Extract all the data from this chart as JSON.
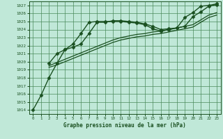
{
  "title": "Graphe pression niveau de la mer (hPa)",
  "bg_color": "#c0e8d8",
  "grid_color": "#4a8a5a",
  "line_color": "#1a5020",
  "xlim": [
    -0.5,
    23.5
  ],
  "ylim": [
    1013.5,
    1027.5
  ],
  "xticks": [
    0,
    1,
    2,
    3,
    4,
    5,
    6,
    7,
    8,
    9,
    10,
    11,
    12,
    13,
    14,
    15,
    16,
    17,
    18,
    19,
    20,
    21,
    22,
    23
  ],
  "yticks": [
    1014,
    1015,
    1016,
    1017,
    1018,
    1019,
    1020,
    1021,
    1022,
    1023,
    1024,
    1025,
    1026,
    1027
  ],
  "series": [
    {
      "x": [
        0,
        1,
        2,
        3,
        4,
        5,
        6,
        7,
        8,
        9,
        10,
        11,
        12,
        13,
        14,
        15,
        16,
        17,
        18,
        19,
        20,
        21,
        22,
        23
      ],
      "y": [
        1014.0,
        1015.8,
        1018.0,
        1019.8,
        1021.5,
        1021.8,
        1022.2,
        1023.5,
        1024.9,
        1024.9,
        1025.1,
        1025.1,
        1025.0,
        1024.9,
        1024.7,
        1024.4,
        1024.0,
        1024.1,
        1024.2,
        1025.5,
        1026.1,
        1026.9,
        1027.0,
        1027.2
      ],
      "marker": "D",
      "markersize": 2.5,
      "linewidth": 1.0
    },
    {
      "x": [
        2,
        3,
        4,
        5,
        6,
        7,
        8,
        9,
        10,
        11,
        12,
        13,
        14,
        15,
        16,
        17,
        18,
        19,
        20,
        21,
        22,
        23
      ],
      "y": [
        1019.8,
        1021.0,
        1021.5,
        1022.2,
        1023.5,
        1024.9,
        1025.0,
        1025.0,
        1025.0,
        1025.0,
        1024.9,
        1024.8,
        1024.6,
        1024.1,
        1023.8,
        1024.0,
        1024.2,
        1024.4,
        1025.6,
        1026.2,
        1026.9,
        1027.1
      ],
      "marker": "D",
      "markersize": 2.5,
      "linewidth": 1.0
    },
    {
      "x": [
        2,
        3,
        4,
        5,
        6,
        7,
        8,
        9,
        10,
        11,
        12,
        13,
        14,
        15,
        16,
        17,
        18,
        19,
        20,
        21,
        22,
        23
      ],
      "y": [
        1019.5,
        1019.9,
        1020.3,
        1020.7,
        1021.1,
        1021.5,
        1021.9,
        1022.3,
        1022.7,
        1023.0,
        1023.2,
        1023.4,
        1023.5,
        1023.7,
        1023.8,
        1024.0,
        1024.2,
        1024.4,
        1024.6,
        1025.2,
        1025.8,
        1026.1
      ],
      "marker": null,
      "markersize": 0,
      "linewidth": 0.9
    },
    {
      "x": [
        2,
        3,
        4,
        5,
        6,
        7,
        8,
        9,
        10,
        11,
        12,
        13,
        14,
        15,
        16,
        17,
        18,
        19,
        20,
        21,
        22,
        23
      ],
      "y": [
        1019.3,
        1019.6,
        1020.0,
        1020.4,
        1020.8,
        1021.2,
        1021.6,
        1022.0,
        1022.4,
        1022.7,
        1022.9,
        1023.1,
        1023.2,
        1023.4,
        1023.5,
        1023.7,
        1023.9,
        1024.1,
        1024.3,
        1024.9,
        1025.5,
        1025.8
      ],
      "marker": null,
      "markersize": 0,
      "linewidth": 0.9
    }
  ]
}
